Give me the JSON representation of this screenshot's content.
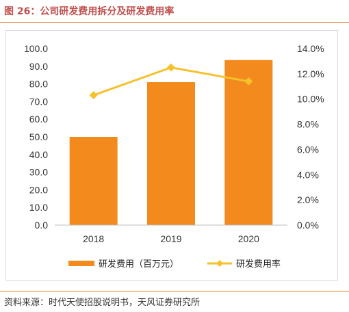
{
  "figure": {
    "title": "图 26：公司研发费用拆分及研发费用率",
    "source": "资料来源：时代天使招股说明书，天风证券研究所"
  },
  "colors": {
    "bar": "#f28a1e",
    "line": "#f6c12b",
    "title": "#c0504d",
    "rule": "#e0783a"
  },
  "chart_data": {
    "type": "bar",
    "categories": [
      "2018",
      "2019",
      "2020"
    ],
    "series": [
      {
        "name": "研发费用（百万元）",
        "type": "bar",
        "axis": "left",
        "values": [
          50.0,
          81.0,
          93.5
        ]
      },
      {
        "name": "研发费用率",
        "type": "line",
        "axis": "right",
        "values": [
          10.3,
          12.5,
          11.4
        ]
      }
    ],
    "y_left": {
      "lim": [
        0,
        100
      ],
      "ticks": [
        "0.0",
        "10.0",
        "20.0",
        "30.0",
        "40.0",
        "50.0",
        "60.0",
        "70.0",
        "80.0",
        "90.0",
        "100.0"
      ]
    },
    "y_right": {
      "lim": [
        0,
        14
      ],
      "ticks": [
        "0.0%",
        "2.0%",
        "4.0%",
        "6.0%",
        "8.0%",
        "10.0%",
        "12.0%",
        "14.0%"
      ]
    },
    "grid": false,
    "legend": "bottom"
  }
}
